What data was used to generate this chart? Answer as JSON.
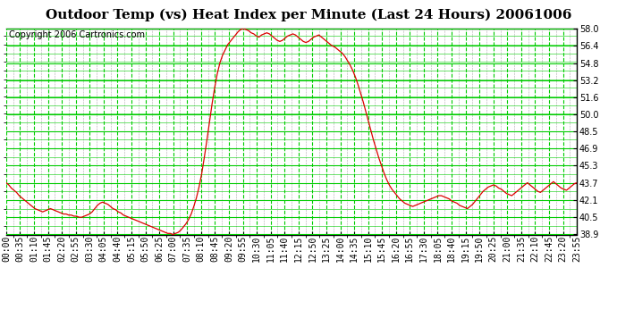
{
  "title": "Outdoor Temp (vs) Heat Index per Minute (Last 24 Hours) 20061006",
  "copyright": "Copyright 2006 Cartronics.com",
  "y_min": 38.9,
  "y_max": 58.0,
  "y_ticks": [
    38.9,
    40.5,
    42.1,
    43.7,
    45.3,
    46.9,
    48.5,
    50.0,
    51.6,
    53.2,
    54.8,
    56.4,
    58.0
  ],
  "x_labels": [
    "00:00",
    "00:35",
    "01:10",
    "01:45",
    "02:20",
    "02:55",
    "03:30",
    "04:05",
    "04:40",
    "05:15",
    "05:50",
    "06:25",
    "07:00",
    "07:35",
    "08:10",
    "08:45",
    "09:20",
    "09:55",
    "10:30",
    "11:05",
    "11:40",
    "12:15",
    "12:50",
    "13:25",
    "14:00",
    "14:35",
    "15:10",
    "15:45",
    "16:20",
    "16:55",
    "17:30",
    "18:05",
    "18:40",
    "19:15",
    "19:50",
    "20:25",
    "21:00",
    "21:35",
    "22:10",
    "22:45",
    "23:20",
    "23:55"
  ],
  "line_color": "#dd0000",
  "background_color": "#ffffff",
  "grid_major_color": "#00cc00",
  "grid_minor_color": "#aaaaaa",
  "title_fontsize": 11,
  "copyright_fontsize": 7,
  "tick_fontsize": 7,
  "data_points": [
    43.7,
    43.5,
    43.2,
    43.0,
    42.8,
    42.5,
    42.3,
    42.1,
    41.9,
    41.7,
    41.5,
    41.3,
    41.2,
    41.1,
    41.0,
    41.1,
    41.2,
    41.3,
    41.2,
    41.1,
    41.0,
    40.9,
    40.8,
    40.8,
    40.7,
    40.7,
    40.6,
    40.6,
    40.5,
    40.5,
    40.6,
    40.7,
    40.8,
    41.0,
    41.3,
    41.6,
    41.8,
    41.9,
    41.8,
    41.7,
    41.5,
    41.3,
    41.2,
    41.0,
    40.9,
    40.7,
    40.6,
    40.5,
    40.4,
    40.3,
    40.2,
    40.1,
    40.0,
    39.9,
    39.8,
    39.7,
    39.6,
    39.5,
    39.4,
    39.3,
    39.2,
    39.1,
    39.0,
    39.0,
    38.9,
    39.0,
    39.1,
    39.3,
    39.6,
    39.9,
    40.3,
    40.8,
    41.5,
    42.3,
    43.3,
    44.5,
    46.0,
    47.6,
    49.3,
    51.0,
    52.5,
    53.8,
    54.8,
    55.5,
    56.0,
    56.5,
    56.8,
    57.1,
    57.4,
    57.7,
    57.9,
    58.0,
    57.9,
    57.8,
    57.6,
    57.5,
    57.3,
    57.2,
    57.4,
    57.5,
    57.6,
    57.5,
    57.3,
    57.1,
    56.9,
    56.8,
    56.9,
    57.1,
    57.3,
    57.4,
    57.5,
    57.4,
    57.2,
    57.0,
    56.8,
    56.7,
    56.8,
    57.0,
    57.2,
    57.3,
    57.4,
    57.2,
    57.0,
    56.8,
    56.6,
    56.4,
    56.3,
    56.1,
    55.9,
    55.7,
    55.4,
    55.0,
    54.6,
    54.1,
    53.5,
    52.8,
    52.0,
    51.2,
    50.3,
    49.4,
    48.5,
    47.6,
    46.8,
    46.0,
    45.3,
    44.6,
    44.0,
    43.5,
    43.1,
    42.8,
    42.5,
    42.2,
    42.0,
    41.8,
    41.7,
    41.6,
    41.5,
    41.6,
    41.7,
    41.8,
    41.9,
    42.0,
    42.1,
    42.2,
    42.3,
    42.4,
    42.5,
    42.5,
    42.4,
    42.3,
    42.2,
    42.0,
    41.9,
    41.8,
    41.6,
    41.5,
    41.4,
    41.3,
    41.5,
    41.7,
    42.0,
    42.3,
    42.6,
    42.9,
    43.1,
    43.3,
    43.4,
    43.5,
    43.4,
    43.2,
    43.1,
    42.9,
    42.7,
    42.6,
    42.5,
    42.7,
    42.9,
    43.1,
    43.3,
    43.5,
    43.7,
    43.5,
    43.3,
    43.1,
    42.9,
    42.8,
    43.0,
    43.2,
    43.4,
    43.6,
    43.8,
    43.6,
    43.4,
    43.2,
    43.1,
    43.0,
    43.2,
    43.4,
    43.6,
    43.7
  ]
}
